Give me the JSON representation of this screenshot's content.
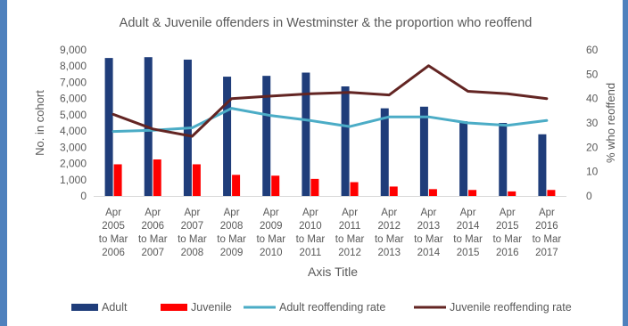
{
  "chart_data": {
    "type": "bar",
    "title": "Adult & Juvenile offenders in Westminster & the proportion who reoffend",
    "xlabel": "Axis Title",
    "ylabel": "No. in cohort",
    "y2label": "% who reoffend",
    "ylim": [
      0,
      9000
    ],
    "yticks": [
      "0",
      "1,000",
      "2,000",
      "3,000",
      "4,000",
      "5,000",
      "6,000",
      "7,000",
      "8,000",
      "9,000"
    ],
    "y2lim": [
      0,
      60
    ],
    "y2ticks": [
      "0",
      "10",
      "20",
      "30",
      "40",
      "50",
      "60"
    ],
    "legend_position": "bottom",
    "grid": false,
    "categories": [
      [
        "Apr",
        "2005",
        "to Mar",
        "2006"
      ],
      [
        "Apr",
        "2006",
        "to Mar",
        "2007"
      ],
      [
        "Apr",
        "2007",
        "to Mar",
        "2008"
      ],
      [
        "Apr",
        "2008",
        "to Mar",
        "2009"
      ],
      [
        "Apr",
        "2009",
        "to Mar",
        "2010"
      ],
      [
        "Apr",
        "2010",
        "to Mar",
        "2011"
      ],
      [
        "Apr",
        "2011",
        "to Mar",
        "2012"
      ],
      [
        "Apr",
        "2012",
        "to Mar",
        "2013"
      ],
      [
        "Apr",
        "2013",
        "to Mar",
        "2014"
      ],
      [
        "Apr",
        "2014",
        "to Mar",
        "2015"
      ],
      [
        "Apr",
        "2015",
        "to Mar",
        "2016"
      ],
      [
        "Apr",
        "2016",
        "to Mar",
        "2017"
      ]
    ],
    "series": [
      {
        "name": "Adult",
        "type": "bar",
        "axis": "left",
        "color": "#1f3d7a",
        "values": [
          8500,
          8550,
          8400,
          7350,
          7400,
          7600,
          6750,
          5400,
          5500,
          4600,
          4500,
          3800
        ]
      },
      {
        "name": "Juvenile",
        "type": "bar",
        "axis": "left",
        "color": "#ff0000",
        "values": [
          1950,
          2250,
          1950,
          1300,
          1250,
          1050,
          850,
          580,
          420,
          370,
          280,
          370
        ]
      },
      {
        "name": "Adult reoffending rate",
        "type": "line",
        "axis": "right",
        "color": "#4bacc6",
        "values": [
          26.5,
          27,
          28,
          36,
          33,
          31,
          28.5,
          32.5,
          32.5,
          30,
          29,
          31
        ]
      },
      {
        "name": "Juvenile reoffending rate",
        "type": "line",
        "axis": "right",
        "color": "#632523",
        "values": [
          33.5,
          27.5,
          24.5,
          40,
          41,
          42,
          42.5,
          41.5,
          53.5,
          43,
          42,
          40
        ]
      }
    ]
  }
}
